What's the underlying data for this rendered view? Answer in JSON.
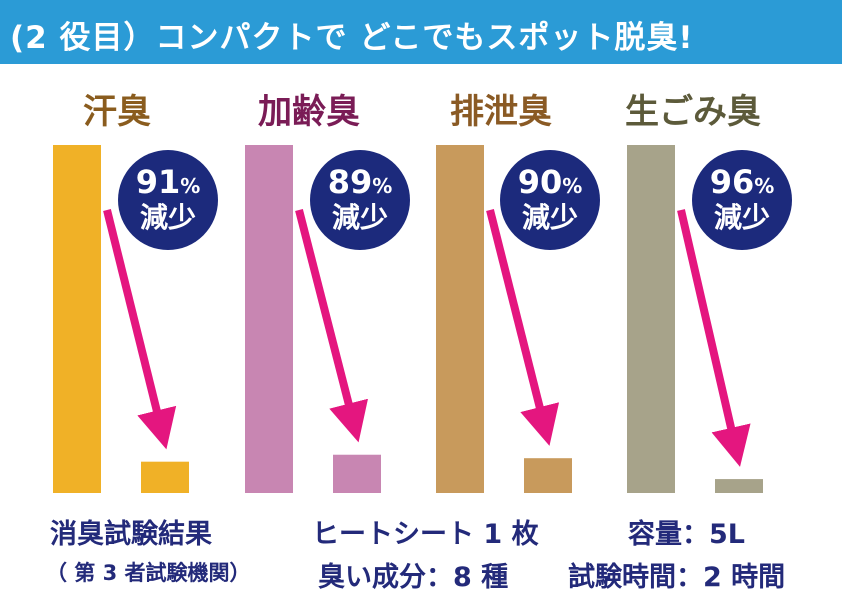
{
  "header": {
    "title": "(2 役目）コンパクトで どこでもスポット脱臭!",
    "bg_color": "#2b9bd6"
  },
  "chart_data": {
    "type": "bar",
    "categories": [
      "汗臭",
      "加齢臭",
      "排泄臭",
      "生ごみ臭"
    ],
    "series": [
      {
        "values": [
          100,
          100,
          100,
          100
        ]
      },
      {
        "values": [
          9,
          11,
          10,
          4
        ]
      }
    ],
    "reductions": [
      {
        "percent": "91",
        "unit": "%",
        "label": "減少"
      },
      {
        "percent": "89",
        "unit": "%",
        "label": "減少"
      },
      {
        "percent": "90",
        "unit": "%",
        "label": "減少"
      },
      {
        "percent": "96",
        "unit": "%",
        "label": "減少"
      }
    ],
    "colors": [
      "#f0b127",
      "#c886b2",
      "#c89a5c",
      "#a7a38a"
    ],
    "label_colors": [
      "#8a5c1e",
      "#7a1c56",
      "#8a5a24",
      "#5c5a3a"
    ],
    "arrow_color": "#e4167f",
    "badge_color": "#1c2a7c",
    "ylim": [
      0,
      100
    ]
  },
  "footer": {
    "left_line1": "消臭試験結果",
    "left_line2": "（ 第 3 者試験機関）",
    "middle_line1": "ヒートシート 1 枚",
    "middle_line2": "臭い成分：8 種",
    "right_line1": "容量：5L",
    "right_line2": "試験時間：2 時間"
  }
}
